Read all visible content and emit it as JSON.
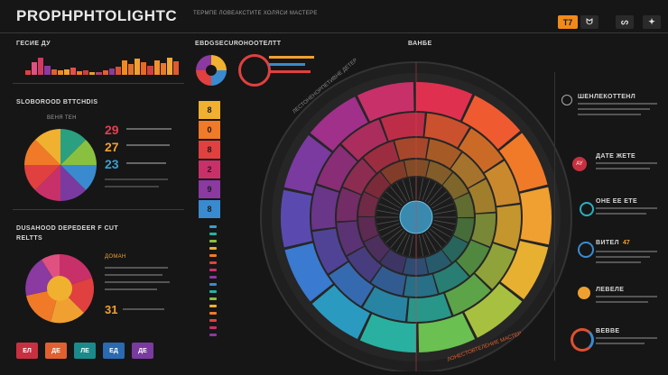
{
  "header": {
    "title": "PROPHPHTOLIGHTC",
    "subtitle": "ТЕРМПЕ ЛОВЕАКСТИТЕ ХОЛЯСИ МАСТЕРЕ",
    "buttons": [
      {
        "label": "T7"
      },
      {
        "label": "ᗢ"
      },
      {
        "label": "ᔕ"
      },
      {
        "label": "✦"
      }
    ]
  },
  "left_panel": {
    "section1_label": "ГЕСИЕ ДУ",
    "section2_label": "SLOBOROOD BTTCHDIS",
    "pie1_caption": "ВЕНЯ ТЕН",
    "pie1_numbers": [
      "29",
      "27",
      "23"
    ],
    "section3_label": "DUSAHOOD DEPEDEER F CUT\nRELTTS",
    "pie2_number": "31",
    "pie2_caption": "ДОМАН"
  },
  "center_left": {
    "label_a": "EBDGSECUR",
    "label_b": "ОНООТЕЛТТ",
    "stack_labels": [
      "8",
      "0",
      "8",
      "2",
      "9",
      "8"
    ],
    "stack_colors": [
      "#f0b030",
      "#f07a28",
      "#e04040",
      "#c8306a",
      "#8a3aa0",
      "#3a8ad0"
    ]
  },
  "wheel": {
    "top_label": "ВАНБЕ",
    "left_arc_text": "ЛЕСТОНЕНОРПЕТИВНЕ ДЕТЕР",
    "bottom_arc_text": "ЛОНЕСТОВТЕЛЕНИЕ МАСТЕР"
  },
  "right_panel": {
    "items": [
      {
        "title": "ШЕНЛЕКОТТЕНЛ",
        "value": ""
      },
      {
        "title": "ДАТЕ ЖЕТЕ",
        "value": "AY"
      },
      {
        "title": "ОНЕ ЕЕ ЕТЕ",
        "value": ""
      },
      {
        "title": "ВИТЕЛ",
        "value": "47"
      },
      {
        "title": "ЛЕВЕЛЕ",
        "value": ""
      },
      {
        "title": "ВЕВВЕ",
        "value": ""
      }
    ]
  },
  "bottom_icons": [
    {
      "label": "ЕЛ"
    },
    {
      "label": "ДЕ"
    },
    {
      "label": "ЛЕ"
    },
    {
      "label": "ЕД"
    },
    {
      "label": "ДЕ"
    }
  ]
}
